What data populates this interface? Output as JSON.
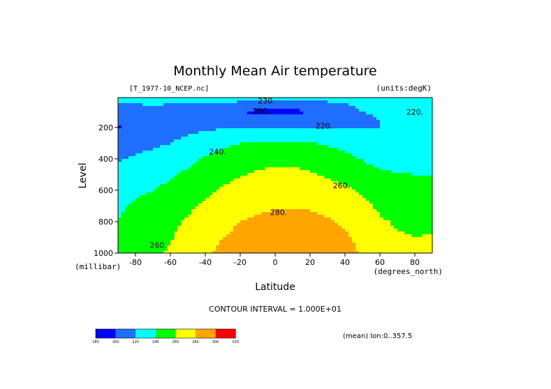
{
  "chart_data": {
    "type": "contour",
    "title": "Monthly Mean Air temperature",
    "file_label": "[T_1977-10_NCEP.nc]",
    "units_label": "(units:degK)",
    "xlabel": "Latitude",
    "x_units": "(degrees_north)",
    "ylabel": "Level",
    "y_units": "(millibar)",
    "xlim": [
      -90,
      90
    ],
    "ylim": [
      1000,
      10
    ],
    "y_inverted": true,
    "x_ticks": [
      "-80",
      "-60",
      "-40",
      "-20",
      "0",
      "20",
      "40",
      "60",
      "80"
    ],
    "x_tick_values": [
      -80,
      -60,
      -40,
      -20,
      0,
      20,
      40,
      60,
      80
    ],
    "y_ticks": [
      "200",
      "400",
      "600",
      "800",
      "1000"
    ],
    "y_tick_values": [
      200,
      400,
      600,
      800,
      1000
    ],
    "contour_interval_text": "CONTOUR INTERVAL = 1.000E+01",
    "mean_note": "(mean) lon:0..357.5",
    "contour_labels": [
      {
        "text": "230.",
        "lat": -5,
        "p": 30
      },
      {
        "text": "200.",
        "lat": -8,
        "p": 95
      },
      {
        "text": "220.",
        "lat": 28,
        "p": 190
      },
      {
        "text": "220.",
        "lat": 80,
        "p": 100
      },
      {
        "text": "240.",
        "lat": -33,
        "p": 355
      },
      {
        "text": "260.",
        "lat": 38,
        "p": 570
      },
      {
        "text": "280.",
        "lat": 2,
        "p": 740
      },
      {
        "text": "260.",
        "lat": -67,
        "p": 950
      }
    ],
    "levels": [
      180,
      200,
      220,
      240,
      260,
      280,
      300,
      320
    ],
    "colorbar": {
      "colors": [
        "#0000ff",
        "#1e6eff",
        "#00ffff",
        "#00ff00",
        "#ffff00",
        "#ffa500",
        "#ff0000"
      ],
      "tick_labels": [
        "180",
        "200",
        "220",
        "240",
        "260",
        "280",
        "300",
        "320"
      ]
    },
    "field_latitudes": [
      -90,
      -80,
      -70,
      -60,
      -50,
      -40,
      -30,
      -20,
      -10,
      0,
      10,
      20,
      30,
      40,
      50,
      60,
      70,
      80,
      90
    ],
    "field_pressures": [
      10,
      50,
      100,
      150,
      200,
      250,
      300,
      350,
      400,
      500,
      600,
      700,
      800,
      900,
      1000
    ],
    "field_kelvin": [
      [
        226,
        228,
        229,
        229,
        229,
        230,
        231,
        231,
        230,
        230,
        230,
        229,
        228,
        227,
        226,
        225,
        224,
        224,
        224
      ],
      [
        218,
        220,
        221,
        220,
        219,
        219,
        218,
        214,
        209,
        206,
        208,
        212,
        216,
        220,
        223,
        223,
        224,
        224,
        224
      ],
      [
        210,
        215,
        216,
        214,
        214,
        213,
        206,
        201,
        196,
        195,
        196,
        200,
        208,
        215,
        220,
        222,
        222,
        222,
        222
      ],
      [
        202,
        208,
        210,
        212,
        213,
        212,
        210,
        208,
        206,
        206,
        207,
        209,
        211,
        215,
        218,
        220,
        221,
        221,
        221
      ],
      [
        198,
        205,
        208,
        211,
        214,
        216,
        218,
        219,
        219,
        219,
        219,
        219,
        219,
        219,
        219,
        220,
        221,
        221,
        221
      ],
      [
        205,
        210,
        213,
        216,
        220,
        224,
        229,
        230,
        231,
        231,
        231,
        230,
        228,
        226,
        224,
        223,
        222,
        222,
        222
      ],
      [
        210,
        214,
        217,
        220,
        224,
        230,
        235,
        240,
        242,
        243,
        243,
        241,
        237,
        233,
        229,
        226,
        225,
        224,
        224
      ],
      [
        215,
        218,
        221,
        225,
        229,
        236,
        242,
        246,
        249,
        251,
        250,
        247,
        244,
        240,
        234,
        230,
        228,
        227,
        227
      ],
      [
        219,
        222,
        226,
        230,
        234,
        242,
        248,
        252,
        255,
        256,
        255,
        253,
        250,
        244,
        239,
        234,
        232,
        231,
        231
      ],
      [
        226,
        230,
        234,
        238,
        244,
        249,
        255,
        259,
        262,
        264,
        264,
        262,
        258,
        254,
        248,
        243,
        241,
        240,
        240
      ],
      [
        233,
        237,
        240,
        244,
        251,
        256,
        262,
        267,
        270,
        272,
        272,
        270,
        267,
        263,
        257,
        250,
        248,
        247,
        247
      ],
      [
        238,
        242,
        246,
        251,
        257,
        263,
        269,
        274,
        277,
        279,
        279,
        278,
        275,
        270,
        264,
        257,
        254,
        253,
        253
      ],
      [
        240,
        246,
        251,
        256,
        262,
        268,
        275,
        280,
        283,
        284,
        284,
        285,
        282,
        277,
        270,
        262,
        258,
        257,
        257
      ],
      [
        241,
        249,
        254,
        259,
        266,
        273,
        280,
        284,
        287,
        288,
        288,
        289,
        287,
        283,
        275,
        267,
        262,
        260,
        261
      ],
      [
        241,
        251,
        256,
        262,
        270,
        277,
        284,
        288,
        290,
        291,
        291,
        291,
        290,
        286,
        278,
        270,
        265,
        262,
        264
      ]
    ]
  }
}
